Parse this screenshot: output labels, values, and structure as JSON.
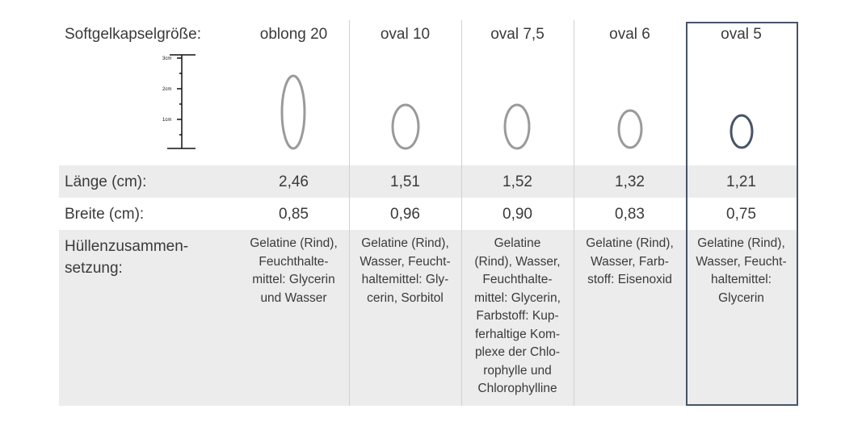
{
  "header_label": "Softgelkapselgröße:",
  "ruler": {
    "unit": "cm",
    "labels": [
      "3cm",
      "2cm",
      "1cm"
    ]
  },
  "rows": {
    "length_label": "Länge (cm):",
    "width_label": "Breite (cm):",
    "composition_label": "Hüllenzusammen-\nsetzung:"
  },
  "columns": [
    {
      "name": "oblong 20",
      "length": "2,46",
      "width": "0,85",
      "composition": "Gelatine (Rind),\nFeuchthalte-\nmittel: Glycerin\nund Wasser",
      "length_cm": 2.46,
      "width_cm": 0.85
    },
    {
      "name": "oval 10",
      "length": "1,51",
      "width": "0,96",
      "composition": "Gelatine (Rind),\nWasser, Feucht-\nhaltemittel: Gly-\ncerin, Sorbitol",
      "length_cm": 1.51,
      "width_cm": 0.96
    },
    {
      "name": "oval 7,5",
      "length": "1,52",
      "width": "0,90",
      "composition": "Gelatine\n(Rind), Wasser,\nFeuchthalte-\nmittel: Glycerin,\nFarbstoff: Kup-\nferhaltige Kom-\nplexe der Chlo-\nrophylle und\nChlorophylline",
      "length_cm": 1.52,
      "width_cm": 0.9
    },
    {
      "name": "oval 6",
      "length": "1,32",
      "width": "0,83",
      "composition": "Gelatine (Rind),\nWasser, Farb-\nstoff: Eisenoxid",
      "length_cm": 1.32,
      "width_cm": 0.83
    },
    {
      "name": "oval 5",
      "length": "1,21",
      "width": "0,75",
      "composition": "Gelatine (Rind),\nWasser, Feucht-\nhaltemittel:\nGlycerin",
      "length_cm": 1.21,
      "width_cm": 0.75,
      "highlighted": true
    }
  ],
  "colors": {
    "capsule": "#9a9a9a",
    "highlight": "#465468",
    "band": "#ececec"
  }
}
